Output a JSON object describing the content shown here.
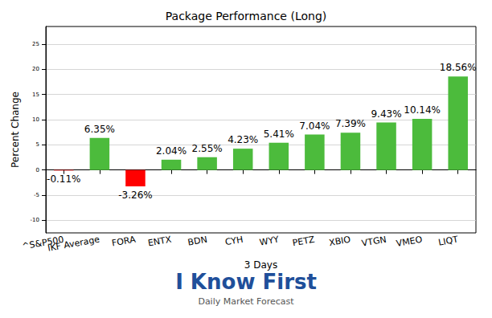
{
  "chart_data": {
    "type": "bar",
    "title": "Package Performance (Long)",
    "x_label": "3 Days",
    "y_label": "Percent Change",
    "categories": [
      "^S&P500",
      "IKF Average",
      "FORA",
      "ENTX",
      "BDN",
      "CYH",
      "WYY",
      "PETZ",
      "XBIO",
      "VTGN",
      "VMEO",
      "LIQT"
    ],
    "values": [
      -0.11,
      6.35,
      -3.26,
      2.04,
      2.55,
      4.23,
      5.41,
      7.04,
      7.39,
      9.43,
      10.14,
      18.56
    ],
    "value_labels": [
      "-0.11%",
      "6.35%",
      "-3.26%",
      "2.04%",
      "2.55%",
      "4.23%",
      "5.41%",
      "7.04%",
      "7.39%",
      "9.43%",
      "10.14%",
      "18.56%"
    ],
    "colors": [
      "#ff0000",
      "#4cbb3c",
      "#ff0000",
      "#4cbb3c",
      "#4cbb3c",
      "#4cbb3c",
      "#4cbb3c",
      "#4cbb3c",
      "#4cbb3c",
      "#4cbb3c",
      "#4cbb3c",
      "#4cbb3c"
    ],
    "data_labels": true,
    "ylim": [
      -12.5,
      28.5
    ],
    "yticks": [
      -10,
      -5,
      0,
      5,
      10,
      15,
      20,
      25
    ],
    "grid": true,
    "annotations": [
      "I Know First",
      "Daily Market Forecast"
    ]
  }
}
